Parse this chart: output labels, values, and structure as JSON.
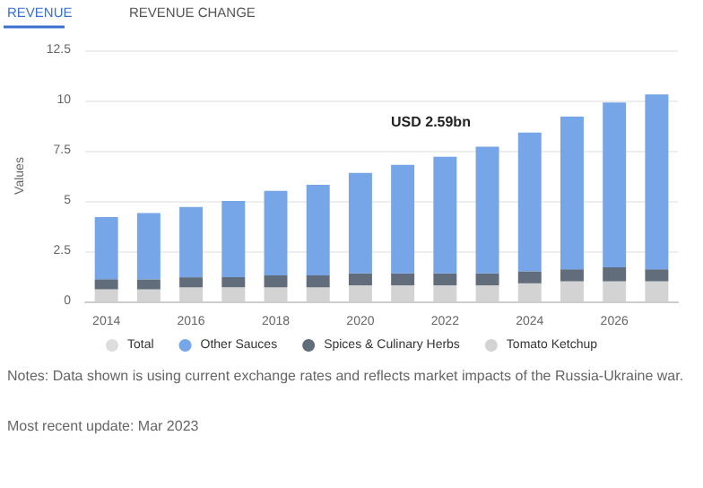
{
  "chart_data": {
    "type": "bar",
    "stacked": true,
    "ylabel": "Values",
    "categories": [
      "2014",
      null,
      "2016",
      null,
      "2018",
      null,
      "2020",
      null,
      "2022",
      null,
      "2024",
      null,
      "2026",
      null
    ],
    "series": [
      {
        "name": "Tomato Ketchup",
        "color": "#d3d3d3",
        "values": [
          0.6,
          0.6,
          0.7,
          0.7,
          0.7,
          0.7,
          0.8,
          0.8,
          0.8,
          0.8,
          0.9,
          1.0,
          1.0,
          1.0
        ]
      },
      {
        "name": "Spices & Culinary Herbs",
        "color": "#626d7b",
        "values": [
          0.5,
          0.5,
          0.5,
          0.5,
          0.6,
          0.6,
          0.6,
          0.6,
          0.6,
          0.6,
          0.6,
          0.6,
          0.7,
          0.6
        ]
      },
      {
        "name": "Other Sauces",
        "color": "#77a6e8",
        "values": [
          3.1,
          3.3,
          3.5,
          3.8,
          4.2,
          4.5,
          5.0,
          5.4,
          5.8,
          6.3,
          6.9,
          7.6,
          8.2,
          8.7
        ]
      },
      {
        "name": "Total",
        "color": "#dddddd",
        "values": [
          null,
          null,
          null,
          null,
          null,
          null,
          null,
          null,
          null,
          null,
          null,
          null,
          null,
          null
        ]
      }
    ],
    "ylim": [
      0,
      12.5
    ],
    "yticks": [
      0,
      2.5,
      5,
      7.5,
      10,
      12.5
    ],
    "grid": "y",
    "legend": "bottom",
    "annotations": [
      "REVENUE",
      "REVENUE CHANGE",
      "USD 2.59bn",
      "Notes: Data shown is using current exchange rates and reflects market impacts of the Russia-Ukraine war.",
      "Most recent update: Mar 2023"
    ]
  }
}
